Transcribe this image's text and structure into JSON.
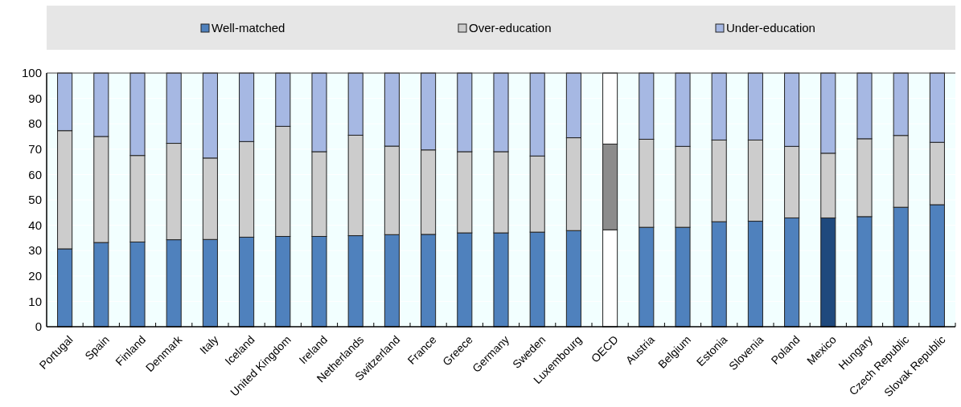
{
  "chart_data": {
    "type": "bar",
    "stacked": true,
    "legend": "top",
    "grid": "y",
    "categories": [
      "Portugal",
      "Spain",
      "Finland",
      "Denmark",
      "Italy",
      "Iceland",
      "United Kingdom",
      "Ireland",
      "Netherlands",
      "Switzerland",
      "France",
      "Greece",
      "Germany",
      "Sweden",
      "Luxembourg",
      "OECD",
      "Austria",
      "Belgium",
      "Estonia",
      "Slovenia",
      "Poland",
      "Mexico",
      "Hungary",
      "Czech Republic",
      "Slovak Republic"
    ],
    "ylim": [
      0,
      100
    ],
    "yticks": [
      0,
      10,
      20,
      30,
      40,
      50,
      60,
      70,
      80,
      90,
      100
    ],
    "series": [
      {
        "name": "Well-matched",
        "color": "#4f81bd",
        "colors": [
          "#4f81bd",
          "#4f81bd",
          "#4f81bd",
          "#4f81bd",
          "#4f81bd",
          "#4f81bd",
          "#4f81bd",
          "#4f81bd",
          "#4f81bd",
          "#4f81bd",
          "#4f81bd",
          "#4f81bd",
          "#4f81bd",
          "#4f81bd",
          "#4f81bd",
          "#ffffff",
          "#4f81bd",
          "#4f81bd",
          "#4f81bd",
          "#4f81bd",
          "#4f81bd",
          "#1f497d",
          "#4f81bd",
          "#4f81bd",
          "#4f81bd"
        ],
        "values": [
          30.7,
          33.2,
          33.4,
          34.3,
          34.4,
          35.3,
          35.6,
          35.6,
          35.9,
          36.3,
          36.4,
          37,
          37,
          37.3,
          37.9,
          38.2,
          39.2,
          39.2,
          41.4,
          41.6,
          42.9,
          42.9,
          43.4,
          47.1,
          48.1
        ]
      },
      {
        "name": "Over-education",
        "color": "#cccccc",
        "colors": [
          "#cccccc",
          "#cccccc",
          "#cccccc",
          "#cccccc",
          "#cccccc",
          "#cccccc",
          "#cccccc",
          "#cccccc",
          "#cccccc",
          "#cccccc",
          "#cccccc",
          "#cccccc",
          "#cccccc",
          "#cccccc",
          "#cccccc",
          "#8c8c8c",
          "#cccccc",
          "#cccccc",
          "#cccccc",
          "#cccccc",
          "#cccccc",
          "#cccccc",
          "#cccccc",
          "#cccccc",
          "#cccccc"
        ],
        "values": [
          46.6,
          41.8,
          34.1,
          38,
          32.1,
          37.7,
          43.4,
          33.4,
          39.6,
          34.9,
          33.3,
          32,
          32,
          30,
          36.6,
          33.8,
          34.7,
          31.9,
          32.2,
          32,
          28.2,
          25.5,
          30.7,
          28.3,
          24.6
        ]
      },
      {
        "name": "Under-education",
        "color": "#a6b8e3",
        "colors": [
          "#a6b8e3",
          "#a6b8e3",
          "#a6b8e3",
          "#a6b8e3",
          "#a6b8e3",
          "#a6b8e3",
          "#a6b8e3",
          "#a6b8e3",
          "#a6b8e3",
          "#a6b8e3",
          "#a6b8e3",
          "#a6b8e3",
          "#a6b8e3",
          "#a6b8e3",
          "#a6b8e3",
          "#ffffff",
          "#a6b8e3",
          "#a6b8e3",
          "#a6b8e3",
          "#a6b8e3",
          "#a6b8e3",
          "#a6b8e3",
          "#a6b8e3",
          "#a6b8e3",
          "#a6b8e3"
        ],
        "values": [
          22.7,
          25,
          32.5,
          27.7,
          33.5,
          27,
          21,
          31,
          24.5,
          28.8,
          30.3,
          31,
          31,
          32.7,
          25.5,
          28,
          26.1,
          28.9,
          26.4,
          26.4,
          28.9,
          31.6,
          25.9,
          24.6,
          27.3
        ]
      }
    ]
  }
}
